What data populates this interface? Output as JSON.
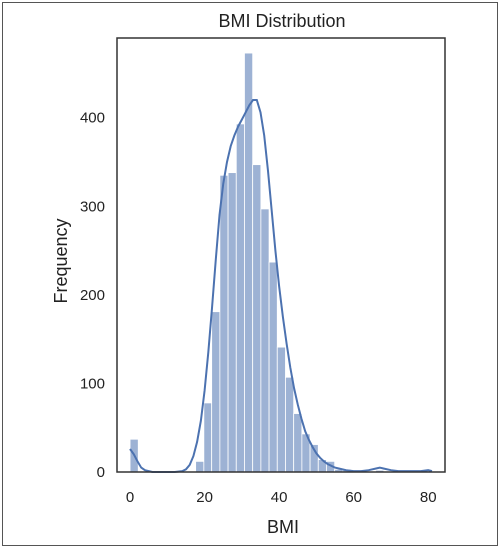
{
  "chart_data": {
    "type": "bar",
    "title": "BMI Distribution",
    "xlabel": "BMI",
    "ylabel": "Frequency",
    "xlim": [
      -3.5,
      84.5
    ],
    "ylim": [
      0,
      490
    ],
    "xticks": [
      "0",
      "20",
      "40",
      "60",
      "80"
    ],
    "xtick_values": [
      0,
      20,
      40,
      60,
      80
    ],
    "yticks": [
      "0",
      "100",
      "200",
      "300",
      "400"
    ],
    "ytick_values": [
      0,
      100,
      200,
      300,
      400
    ],
    "bar_color": "#4c72b0",
    "bar_opacity": 0.55,
    "kde_color": "#4c72b0",
    "grid": false,
    "histogram": {
      "bin_edges": [
        0,
        2.2,
        4.4,
        6.6,
        8.8,
        11.0,
        13.2,
        15.4,
        17.6,
        19.8,
        21.9,
        24.1,
        26.3,
        28.5,
        30.7,
        32.9,
        35.1,
        37.3,
        39.5,
        41.7,
        43.9,
        46.1,
        48.3,
        50.5,
        52.7,
        54.9,
        57.1,
        59.3,
        61.5,
        63.7,
        65.9,
        68.1,
        70.3,
        72.5,
        74.7,
        76.9,
        79.1,
        81.3
      ],
      "counts": [
        37,
        0,
        0,
        0,
        0,
        0,
        0,
        0,
        12,
        78,
        181,
        335,
        338,
        393,
        473,
        347,
        297,
        237,
        141,
        107,
        66,
        43,
        31,
        14,
        12,
        3,
        3,
        1,
        0,
        1,
        2,
        1,
        0,
        0,
        0,
        0,
        1
      ]
    },
    "kde": {
      "x": [
        0,
        1,
        2,
        3,
        4,
        5,
        6,
        8,
        10,
        12,
        14,
        15,
        16,
        17,
        18,
        19,
        20,
        21,
        22,
        23,
        24,
        25,
        26,
        27,
        28,
        29,
        30,
        31,
        32,
        33,
        34,
        35,
        36,
        37,
        38,
        39,
        40,
        41,
        42,
        43,
        44,
        45,
        46,
        47,
        48,
        49,
        50,
        51,
        52,
        53,
        54,
        55,
        56,
        58,
        60,
        62,
        64,
        66,
        67,
        68,
        70,
        72,
        75,
        78,
        80,
        81
      ],
      "y": [
        26,
        20,
        12,
        5,
        2,
        1,
        0,
        0,
        0,
        0,
        1,
        3,
        8,
        18,
        34,
        58,
        92,
        135,
        185,
        240,
        290,
        325,
        350,
        368,
        380,
        390,
        398,
        406,
        414,
        420,
        420,
        406,
        380,
        340,
        295,
        250,
        210,
        175,
        145,
        118,
        95,
        76,
        60,
        46,
        36,
        28,
        21,
        16,
        12,
        9,
        7,
        5,
        4,
        2,
        1,
        1,
        2,
        4,
        5,
        4,
        2,
        1,
        1,
        1,
        2,
        1
      ]
    }
  }
}
